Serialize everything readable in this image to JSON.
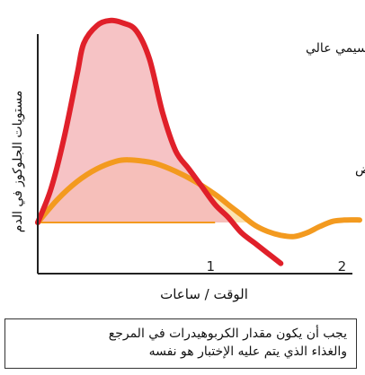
{
  "chart_data": {
    "type": "line",
    "xlabel": "الوقت / ساعات",
    "ylabel": "مستويات الجلوكوز في الدم",
    "x_ticks": [
      "1",
      "2"
    ],
    "xlim": [
      -0.35,
      2.1
    ],
    "ylim": [
      0,
      1
    ],
    "baseline": 0.2,
    "series": [
      {
        "name": "مؤشر جلايسيمي عالي",
        "color": "#e0202a",
        "fill": "#f4b9bb",
        "x": [
          -0.35,
          -0.25,
          -0.15,
          -0.05,
          0.0,
          0.1,
          0.2,
          0.3,
          0.4,
          0.5,
          0.6,
          0.7,
          0.8,
          0.9,
          1.0,
          1.1,
          1.2,
          1.3,
          1.4,
          1.5
        ],
        "y": [
          0.2,
          0.33,
          0.53,
          0.78,
          0.9,
          0.97,
          0.99,
          0.98,
          0.95,
          0.84,
          0.63,
          0.48,
          0.41,
          0.34,
          0.27,
          0.22,
          0.16,
          0.12,
          0.08,
          0.04
        ]
      },
      {
        "name": "مؤشر جلايسيمي منخفض",
        "color": "#f39a1f",
        "fill": "#fbe3b3",
        "x": [
          -0.35,
          -0.2,
          -0.05,
          0.1,
          0.25,
          0.35,
          0.45,
          0.55,
          0.7,
          0.85,
          1.0,
          1.1,
          1.2,
          1.3,
          1.4,
          1.5,
          1.6,
          1.7,
          1.8,
          1.9,
          2.0,
          2.1
        ],
        "y": [
          0.2,
          0.29,
          0.36,
          0.41,
          0.44,
          0.445,
          0.44,
          0.43,
          0.4,
          0.36,
          0.31,
          0.27,
          0.23,
          0.19,
          0.165,
          0.15,
          0.145,
          0.16,
          0.185,
          0.205,
          0.21,
          0.21
        ]
      }
    ]
  },
  "note": {
    "line1": "يجب أن يكون مقدار الكربوهيدرات في المرجع",
    "line2": "والغذاء الذي يتم عليه الإختبار هو نفسه"
  }
}
